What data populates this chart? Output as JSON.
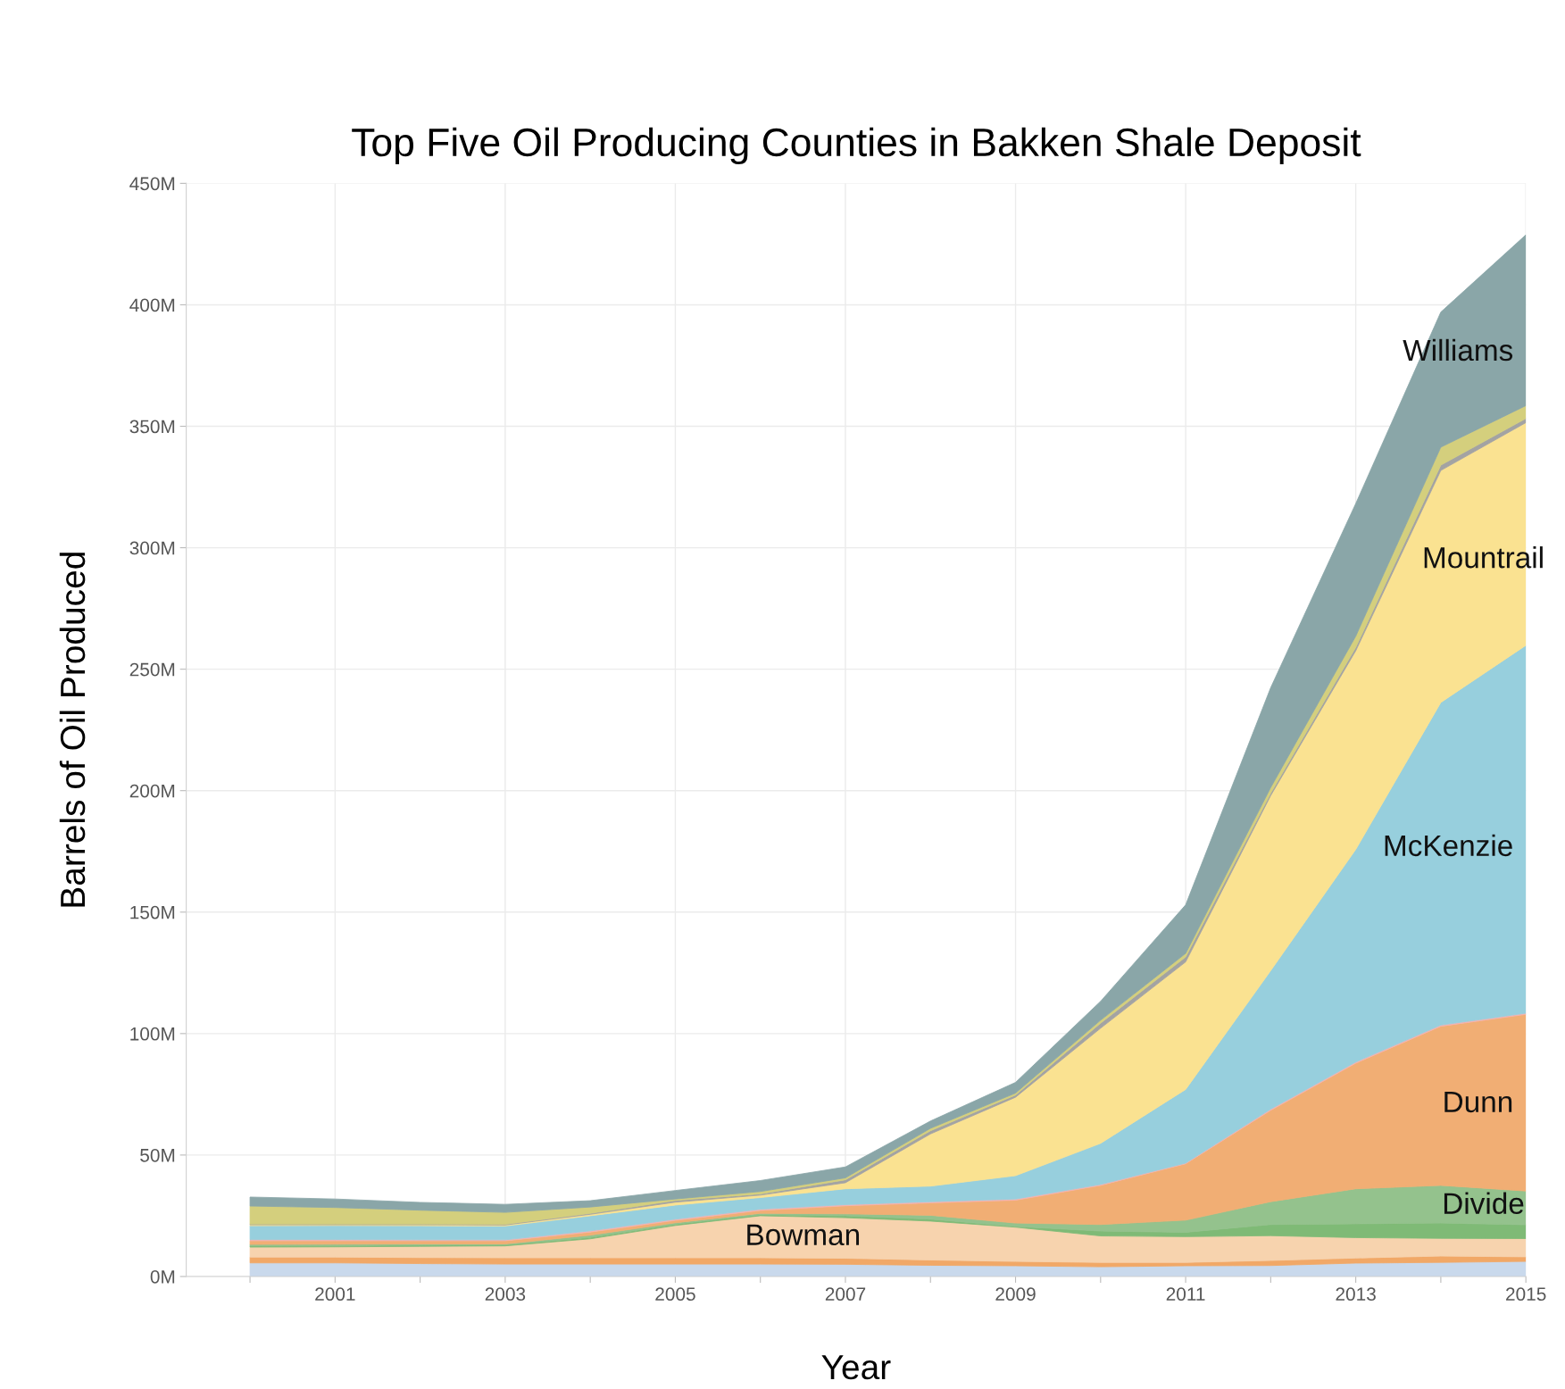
{
  "chart_data": {
    "type": "area",
    "stacked": true,
    "title": "Top Five Oil Producing Counties in Bakken Shale Deposit",
    "xlabel": "Year",
    "ylabel": "Barrels of Oil Produced",
    "x": [
      2000,
      2001,
      2002,
      2003,
      2004,
      2005,
      2006,
      2007,
      2008,
      2009,
      2010,
      2011,
      2012,
      2013,
      2014,
      2015
    ],
    "xlim": [
      1999.25,
      2015
    ],
    "xticks": [
      {
        "value": 2000,
        "label": null
      },
      2001,
      {
        "value": 2002,
        "label": null
      },
      2003,
      {
        "value": 2004,
        "label": null
      },
      2005,
      {
        "value": 2006,
        "label": null
      },
      2007,
      {
        "value": 2008,
        "label": null
      },
      2009,
      {
        "value": 2010,
        "label": null
      },
      2011,
      {
        "value": 2012,
        "label": null
      },
      2013,
      {
        "value": 2014,
        "label": null
      },
      2015
    ],
    "ylim": [
      0,
      450
    ],
    "yticks": [
      {
        "value": 0,
        "label": "0M"
      },
      {
        "value": 50,
        "label": "50M"
      },
      {
        "value": 100,
        "label": "100M"
      },
      {
        "value": 150,
        "label": "150M"
      },
      {
        "value": 200,
        "label": "200M"
      },
      {
        "value": 250,
        "label": "250M"
      },
      {
        "value": 300,
        "label": "300M"
      },
      {
        "value": 350,
        "label": "350M"
      },
      {
        "value": 400,
        "label": "400M"
      },
      {
        "value": 450,
        "label": "450M"
      }
    ],
    "grid": true,
    "legend": false,
    "series": [
      {
        "color": "#c9d9ec",
        "values": [
          5.6,
          5.6,
          5.3,
          5.1,
          5.1,
          5.1,
          5.1,
          5.0,
          4.6,
          4.4,
          4.0,
          4.4,
          4.5,
          5.5,
          5.8,
          6.2
        ]
      },
      {
        "color": "#f1a867",
        "values": [
          2.4,
          2.4,
          2.5,
          2.6,
          2.6,
          2.6,
          2.6,
          2.5,
          2.2,
          1.8,
          1.8,
          1.4,
          2.1,
          2.1,
          2.6,
          1.9
        ]
      },
      {
        "name": "Bowman",
        "color": "#f7d3ae",
        "values": [
          4.1,
          4.2,
          4.6,
          4.9,
          7.8,
          13.3,
          17.3,
          16.7,
          16.0,
          14.1,
          10.9,
          10.6,
          10.2,
          8.4,
          7.3,
          7.5
        ]
      },
      {
        "color": "#7fba76",
        "values": [
          0.5,
          0.5,
          0.5,
          0.4,
          0.6,
          0.5,
          0.4,
          0.8,
          0.8,
          0.3,
          2.0,
          1.8,
          4.6,
          5.7,
          6.3,
          5.7
        ]
      },
      {
        "name": "Divide",
        "color": "#94c28d",
        "values": [
          0.6,
          0.6,
          0.5,
          0.4,
          0.9,
          0.6,
          0.6,
          0.8,
          1.6,
          1.4,
          2.7,
          5.0,
          9.4,
          14.4,
          15.5,
          13.9
        ]
      },
      {
        "name": "Dunn",
        "color": "#f1ae74",
        "values": [
          1.5,
          1.4,
          1.3,
          1.3,
          1.3,
          1.0,
          1.2,
          3.3,
          5.1,
          9.4,
          16.1,
          23.2,
          37.6,
          51.7,
          65.5,
          72.7
        ]
      },
      {
        "color": "#f4b2b0",
        "values": [
          0.5,
          0.5,
          0.4,
          0.4,
          0.5,
          0.5,
          0.5,
          0.5,
          0.5,
          0.5,
          0.4,
          0.3,
          0.5,
          0.5,
          0.5,
          0.5
        ]
      },
      {
        "name": "McKenzie",
        "color": "#97cfdd",
        "values": [
          5.7,
          5.8,
          5.8,
          5.7,
          6.2,
          5.8,
          4.8,
          6.5,
          6.4,
          9.6,
          16.9,
          30.3,
          57.0,
          87.5,
          132.8,
          151.4
        ]
      },
      {
        "name": "Mountrail",
        "color": "#fae291",
        "values": [
          0.4,
          0.3,
          0.4,
          0.4,
          0.6,
          1.2,
          1.0,
          2.5,
          21.5,
          32.3,
          47.4,
          52.5,
          72.1,
          81.8,
          95.5,
          91.7
        ]
      },
      {
        "color": "#a3a3a3",
        "values": [
          0.3,
          0.3,
          0.3,
          0.3,
          0.4,
          0.7,
          0.5,
          1.2,
          1.3,
          0.9,
          2.1,
          2.0,
          1.0,
          1.4,
          2.2,
          1.7
        ]
      },
      {
        "color": "#d4cf7d",
        "values": [
          7.4,
          6.8,
          5.7,
          4.9,
          2.6,
          0.6,
          1.0,
          0.8,
          1.0,
          0.8,
          1.2,
          1.5,
          2.3,
          4.6,
          7.4,
          5.3
        ]
      },
      {
        "name": "Williams",
        "color": "#8aa6a8",
        "values": [
          3.7,
          3.5,
          3.2,
          3.3,
          2.6,
          3.5,
          4.5,
          4.5,
          3.0,
          4.4,
          7.8,
          20.0,
          41.1,
          54.6,
          55.6,
          70.3
        ]
      }
    ]
  }
}
